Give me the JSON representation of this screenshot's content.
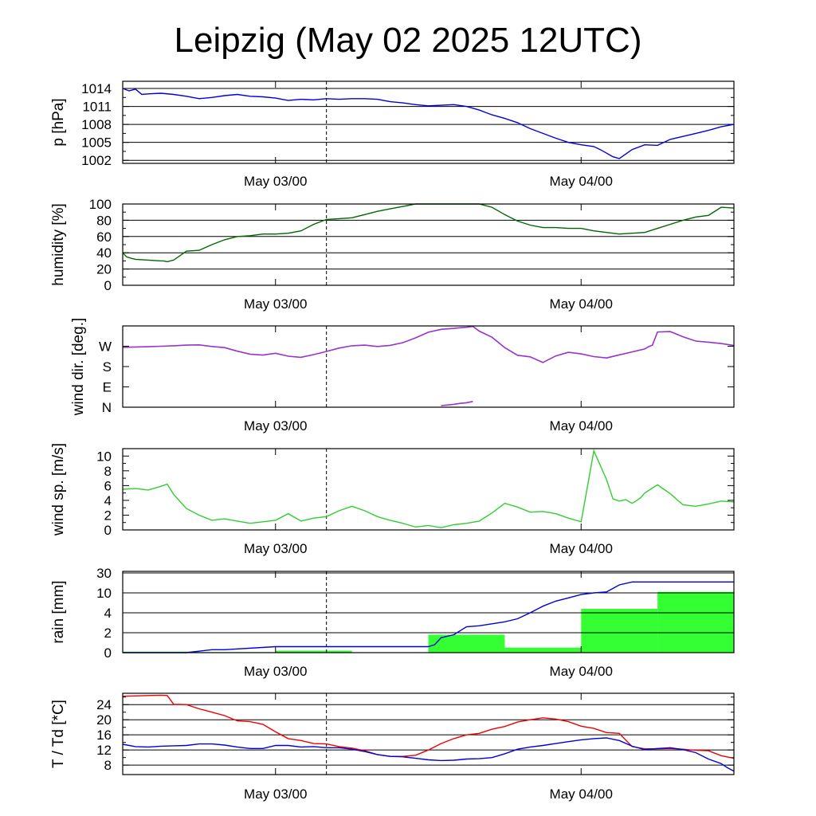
{
  "title": "Leipzig (May 02 2025 12UTC)",
  "time_axis": {
    "tick_labels": [
      "May 03/00",
      "May 04/00"
    ],
    "hours_range": [
      12,
      60
    ],
    "major_tick_hours": [
      24,
      48
    ],
    "dashed_marker_hour": 28
  },
  "chart_data": [
    {
      "type": "line",
      "title": "",
      "ylabel": "p [hPa]",
      "ylim": [
        1001.5,
        1015.2
      ],
      "grid": true,
      "yticks": [
        1002,
        1005,
        1008,
        1011,
        1014
      ],
      "ytick_labels": [
        "1002",
        "1005",
        "1008",
        "1011",
        "1014"
      ],
      "series": [
        {
          "color": "#0000dd",
          "x_hours": [
            12,
            12.5,
            13,
            13.5,
            14,
            15,
            16,
            17,
            18,
            19,
            20,
            21,
            22,
            23,
            24,
            25,
            26,
            27,
            28,
            29,
            30,
            31,
            32,
            33,
            34,
            35,
            36,
            37,
            38,
            39,
            40,
            40.5,
            41,
            42,
            43,
            44,
            45,
            46,
            47,
            48,
            49,
            49.5,
            50,
            50.5,
            51,
            52,
            53,
            54,
            55,
            56,
            57,
            58,
            59,
            60
          ],
          "y": [
            1014,
            1013.6,
            1013.9,
            1013,
            1013.1,
            1013.2,
            1013.0,
            1012.7,
            1012.3,
            1012.5,
            1012.8,
            1013.0,
            1012.7,
            1012.6,
            1012.4,
            1012.0,
            1012.2,
            1012.1,
            1012.3,
            1012.2,
            1012.3,
            1012.3,
            1012.2,
            1011.8,
            1011.6,
            1011.3,
            1011.1,
            1011.2,
            1011.3,
            1011.0,
            1010.4,
            1010.0,
            1009.6,
            1009.0,
            1008.3,
            1007.3,
            1006.5,
            1005.7,
            1005.0,
            1004.6,
            1004.3,
            1003.8,
            1003.2,
            1002.6,
            1002.3,
            1003.8,
            1004.6,
            1004.5,
            1005.5,
            1006.0,
            1006.5,
            1007.0,
            1007.6,
            1008.0
          ]
        }
      ]
    },
    {
      "type": "line",
      "title": "",
      "ylabel": "humidity [%]",
      "ylim": [
        0,
        100
      ],
      "grid": true,
      "yticks": [
        0,
        20,
        40,
        60,
        80,
        100
      ],
      "ytick_labels": [
        "0",
        "20",
        "40",
        "60",
        "80",
        "100"
      ],
      "series": [
        {
          "color": "#006600",
          "x_hours": [
            12,
            12.3,
            12.7,
            13,
            14,
            15,
            15.2,
            15.5,
            16,
            17,
            18,
            19,
            20,
            21,
            22,
            23,
            24,
            25,
            26,
            27,
            28,
            29,
            30,
            31,
            32,
            33,
            34,
            35,
            36,
            37,
            38,
            39,
            40,
            41,
            42,
            43,
            44,
            45,
            46,
            47,
            48,
            49,
            50,
            51,
            52,
            53,
            54,
            55,
            56,
            57,
            58,
            59,
            60
          ],
          "y": [
            40,
            35,
            33,
            32,
            31,
            30,
            30,
            29,
            31,
            42,
            43,
            50,
            56,
            60,
            61,
            63,
            63,
            64,
            67,
            75,
            81,
            82,
            83,
            87,
            91,
            94,
            97,
            100,
            100,
            100,
            100,
            100,
            100,
            96,
            87,
            79,
            74,
            71,
            71,
            70,
            70,
            67,
            65,
            63,
            64,
            65,
            70,
            75,
            80,
            84,
            86,
            96,
            95
          ]
        }
      ]
    },
    {
      "type": "scatter",
      "title": "",
      "ylabel": "wind dir. [deg.]",
      "ylim": [
        0,
        360
      ],
      "grid": false,
      "yticks": [
        0,
        90,
        180,
        270
      ],
      "ytick_labels": [
        "N",
        "E",
        "S",
        "W"
      ],
      "series": [
        {
          "color": "#9933cc",
          "x_hours": [
            12,
            13,
            14,
            15,
            16,
            17,
            18,
            19,
            20,
            21,
            22,
            23,
            24,
            25,
            26,
            27,
            28,
            29,
            30,
            31,
            32,
            33,
            34,
            35,
            36,
            37,
            38,
            38.5,
            39,
            39.5,
            40,
            41,
            42,
            43,
            44,
            45,
            46,
            47,
            48,
            49,
            50,
            51,
            52,
            53,
            53.3,
            53.6,
            54,
            55,
            56,
            57,
            58,
            59,
            60
          ],
          "y": [
            265,
            267,
            268,
            270,
            272,
            275,
            276,
            269,
            264,
            248,
            235,
            231,
            239,
            226,
            221,
            233,
            247,
            262,
            272,
            275,
            269,
            274,
            286,
            307,
            332,
            345,
            349,
            352,
            354,
            358,
            337,
            310,
            264,
            230,
            223,
            198,
            227,
            243,
            236,
            224,
            218,
            232,
            245,
            258,
            268,
            275,
            333,
            335,
            312,
            293,
            288,
            282,
            273
          ]
        }
      ]
    },
    {
      "type": "line",
      "title": "",
      "ylabel": "wind sp. [m/s]",
      "ylim": [
        0,
        11
      ],
      "grid": false,
      "yticks": [
        0,
        2,
        4,
        6,
        8,
        10
      ],
      "ytick_labels": [
        "0",
        "2",
        "4",
        "6",
        "8",
        "10"
      ],
      "series": [
        {
          "color": "#33cc33",
          "x_hours": [
            12,
            13,
            14,
            15,
            15.5,
            16,
            17,
            18,
            19,
            20,
            21,
            22,
            23,
            24,
            25,
            26,
            27,
            28,
            29,
            30,
            31,
            32,
            33,
            34,
            35,
            36,
            37,
            38,
            39,
            40,
            41,
            42,
            43,
            44,
            45,
            46,
            47,
            48,
            49,
            50,
            50.5,
            51,
            51.5,
            52,
            52.3,
            52.7,
            53,
            54,
            55,
            56,
            57,
            58,
            59,
            60
          ],
          "y": [
            5.5,
            5.6,
            5.4,
            5.9,
            6.2,
            4.8,
            2.9,
            2.0,
            1.3,
            1.5,
            1.2,
            0.9,
            1.1,
            1.3,
            2.2,
            1.2,
            1.6,
            1.8,
            2.6,
            3.2,
            2.6,
            1.8,
            1.3,
            0.9,
            0.4,
            0.6,
            0.3,
            0.7,
            0.9,
            1.2,
            2.3,
            3.6,
            3.1,
            2.4,
            2.5,
            2.2,
            1.6,
            1.1,
            10.7,
            6.8,
            4.2,
            3.9,
            4.1,
            3.6,
            3.9,
            4.4,
            5.0,
            6.1,
            4.9,
            3.4,
            3.2,
            3.5,
            3.9,
            3.8
          ]
        }
      ]
    },
    {
      "type": "bar",
      "title": "",
      "ylabel": "rain [mm]",
      "ylim": [
        0,
        30
      ],
      "grid": true,
      "yticks": [
        0,
        2,
        4,
        10,
        30
      ],
      "ytick_labels": [
        "0",
        "2",
        "4",
        "10",
        "30"
      ],
      "series": [
        {
          "name": "",
          "color": "#33ff33",
          "bar_start_hours": [
            12,
            18,
            24,
            30,
            36,
            42,
            48,
            54
          ],
          "bar_end_hours": [
            18,
            24,
            30,
            36,
            42,
            48,
            54,
            60
          ],
          "values": [
            0.1,
            0.05,
            0.2,
            0,
            1.8,
            0.5,
            5.2,
            11.0
          ]
        },
        {
          "name": "",
          "color": "#0000dd",
          "type": "line",
          "x_hours": [
            12,
            17,
            19,
            20,
            24,
            26,
            30,
            36,
            36.5,
            37,
            38,
            39,
            40,
            41,
            42,
            43,
            44,
            45,
            46,
            47,
            48,
            49,
            50,
            51,
            52,
            53,
            54,
            55,
            56,
            57,
            58,
            59,
            60
          ],
          "y": [
            0,
            0,
            0.3,
            0.3,
            0.6,
            0.6,
            0.6,
            0.6,
            0.8,
            1.5,
            1.8,
            2.6,
            2.7,
            2.9,
            3.1,
            3.4,
            4.0,
            6.0,
            7.5,
            8.5,
            9.5,
            10.0,
            11.0,
            18.0,
            21.0,
            21.0,
            21.0,
            21.0,
            21.0,
            21.0,
            21.0,
            21.0,
            21.0
          ]
        }
      ]
    },
    {
      "type": "line",
      "title": "",
      "ylabel": "T / Td [*C]",
      "ylim": [
        5.5,
        27
      ],
      "grid": true,
      "yticks": [
        8,
        12,
        16,
        20,
        24
      ],
      "ytick_labels": [
        "8",
        "12",
        "16",
        "20",
        "24"
      ],
      "series": [
        {
          "color": "#ee0000",
          "x_hours": [
            12,
            13,
            14,
            15,
            15.5,
            16,
            17,
            18,
            19,
            20,
            21,
            22,
            23,
            24,
            25,
            26,
            27,
            28,
            29,
            30,
            31,
            32,
            33,
            34,
            35,
            36,
            37,
            38,
            39,
            40,
            41,
            42,
            43,
            44,
            45,
            46,
            47,
            48,
            49,
            50,
            51,
            52,
            53,
            54,
            55,
            56,
            57,
            58,
            59,
            60
          ],
          "y": [
            26.2,
            26.3,
            26.4,
            26.5,
            26.4,
            24.1,
            24.0,
            22.9,
            22.0,
            21.1,
            19.7,
            19.5,
            18.8,
            16.8,
            15.0,
            14.5,
            13.7,
            13.6,
            12.9,
            12.5,
            11.8,
            10.8,
            10.3,
            10.3,
            10.6,
            12.0,
            13.7,
            15.0,
            16.0,
            16.4,
            17.5,
            18.2,
            19.4,
            20.0,
            20.5,
            20.2,
            19.5,
            18.3,
            17.7,
            16.6,
            16.4,
            12.9,
            12.3,
            12.3,
            12.4,
            12.2,
            11.9,
            11.8,
            10.5,
            9.8
          ]
        },
        {
          "color": "#0000dd",
          "x_hours": [
            12,
            13,
            14,
            15,
            16,
            17,
            18,
            19,
            20,
            21,
            22,
            23,
            24,
            25,
            26,
            27,
            28,
            29,
            30,
            31,
            32,
            33,
            34,
            35,
            36,
            37,
            38,
            39,
            40,
            41,
            42,
            43,
            44,
            45,
            46,
            47,
            48,
            49,
            50,
            51,
            52,
            53,
            54,
            55,
            56,
            57,
            58,
            59,
            59.5,
            60
          ],
          "y": [
            13.5,
            12.9,
            12.8,
            13.0,
            13.1,
            13.2,
            13.6,
            13.6,
            13.3,
            12.8,
            12.4,
            12.4,
            13.2,
            13.2,
            12.8,
            12.9,
            12.6,
            12.6,
            12.2,
            11.6,
            10.8,
            10.3,
            10.2,
            9.8,
            9.4,
            9.2,
            9.3,
            9.6,
            9.7,
            10.0,
            11.0,
            12.2,
            12.8,
            13.2,
            13.7,
            14.2,
            14.7,
            15.0,
            15.2,
            14.5,
            13.0,
            12.1,
            12.4,
            12.6,
            12.1,
            11.3,
            9.6,
            8.4,
            7.3,
            6.4
          ]
        }
      ]
    }
  ]
}
